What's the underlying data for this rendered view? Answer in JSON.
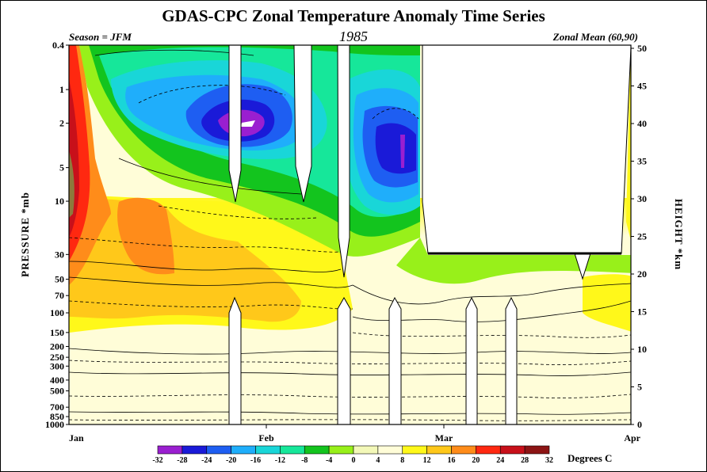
{
  "chart_data": {
    "type": "heatmap",
    "title": "GDAS-CPC Zonal Temperature Anomaly Time Series",
    "season_label": "Season = JFM",
    "year": "1985",
    "region_label": "Zonal Mean (60,90)",
    "ylabel_left": "PRESSURE *mb",
    "ylabel_right": "HEIGHT *km",
    "x_ticks": [
      "Jan",
      "Feb",
      "Mar",
      "Apr"
    ],
    "pressure_ticks": [
      "0.4",
      "1",
      "2",
      "5",
      "10",
      "30",
      "50",
      "70",
      "100",
      "150",
      "200",
      "250",
      "300",
      "400",
      "500",
      "700",
      "850",
      "1000"
    ],
    "pressure_values": [
      0.4,
      1,
      2,
      5,
      10,
      30,
      50,
      70,
      100,
      150,
      200,
      250,
      300,
      400,
      500,
      700,
      850,
      1000
    ],
    "height_ticks": [
      "50",
      "45",
      "40",
      "35",
      "30",
      "25",
      "20",
      "15",
      "10",
      "5",
      "0"
    ],
    "height_values": [
      50,
      45,
      40,
      35,
      30,
      25,
      20,
      15,
      10,
      5,
      0
    ],
    "colorbar_levels": [
      "-32",
      "-28",
      "-24",
      "-20",
      "-16",
      "-12",
      "-8",
      "-4",
      "0",
      "4",
      "8",
      "12",
      "16",
      "20",
      "24",
      "28",
      "32"
    ],
    "colorbar_colors": [
      "#9a1fd0",
      "#1a1ad8",
      "#1e5ef2",
      "#1faefb",
      "#19d6d8",
      "#16e79a",
      "#13c41e",
      "#98f01a",
      "#f3f8b8",
      "#fffdd8",
      "#fff81a",
      "#ffc81a",
      "#ff8c1a",
      "#ff2810",
      "#c8101a",
      "#8c1414",
      "#8c7a3c"
    ],
    "colorbar_unit": "Degrees C"
  }
}
